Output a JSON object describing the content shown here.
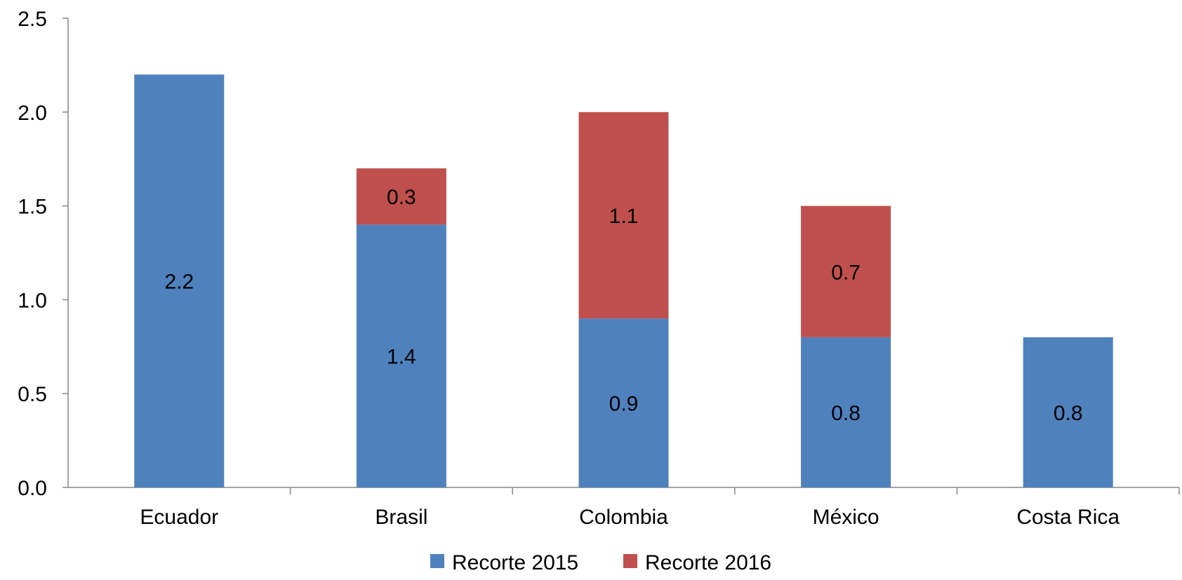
{
  "chart_data": {
    "type": "bar",
    "stacked": true,
    "title": "",
    "xlabel": "",
    "ylabel": "",
    "categories": [
      "Ecuador",
      "Brasil",
      "Colombia",
      "México",
      "Costa Rica"
    ],
    "series": [
      {
        "name": "Recorte 2015",
        "color": "#4F81BD",
        "values": [
          2.2,
          1.4,
          0.9,
          0.8,
          0.8
        ],
        "labels": [
          "2.2",
          "1.4",
          "0.9",
          "0.8",
          "0.8"
        ]
      },
      {
        "name": "Recorte 2016",
        "color": "#C0504D",
        "values": [
          0,
          0.3,
          1.1,
          0.7,
          0
        ],
        "labels": [
          "",
          "0.3",
          "1.1",
          "0.7",
          ""
        ]
      }
    ],
    "ylim": [
      0,
      2.5
    ],
    "yticks": [
      "0.0",
      "0.5",
      "1.0",
      "1.5",
      "2.0",
      "2.5"
    ],
    "grid": false,
    "legend_position": "bottom"
  }
}
